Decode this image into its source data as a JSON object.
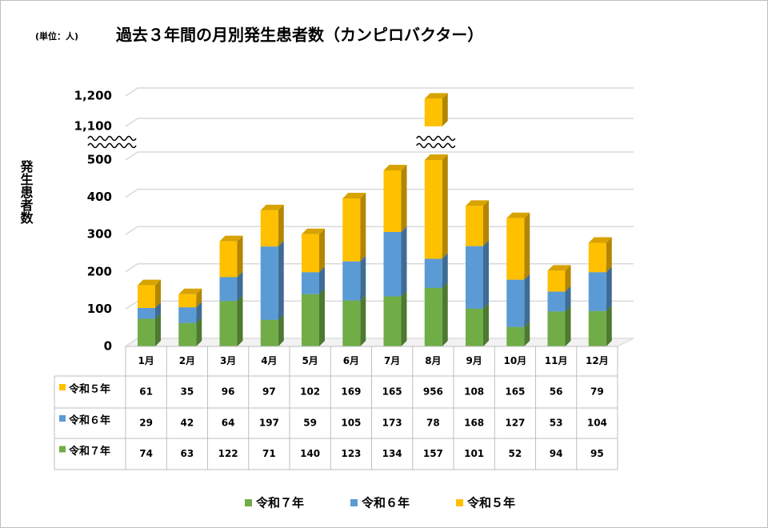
{
  "chart_data": {
    "type": "stacked-bar",
    "title": "過去３年間の月別発生患者数（カンピロバクター）",
    "unit_note": "(単位：人)",
    "y_label": "発生患者数",
    "categories": [
      "1月",
      "2月",
      "3月",
      "4月",
      "5月",
      "6月",
      "7月",
      "8月",
      "9月",
      "10月",
      "11月",
      "12月"
    ],
    "series": [
      {
        "name": "令和７年",
        "color": "#70ad47",
        "values": [
          74,
          63,
          122,
          71,
          140,
          123,
          134,
          157,
          101,
          52,
          94,
          95
        ]
      },
      {
        "name": "令和６年",
        "color": "#5b9bd5",
        "values": [
          29,
          42,
          64,
          197,
          59,
          105,
          173,
          78,
          168,
          127,
          53,
          104
        ]
      },
      {
        "name": "令和５年",
        "color": "#ffc000",
        "values": [
          61,
          35,
          96,
          97,
          102,
          169,
          165,
          956,
          108,
          165,
          56,
          79
        ]
      }
    ],
    "ylim": [
      0,
      1200
    ],
    "y_break": [
      500,
      1100
    ],
    "yticks": [
      0,
      100,
      200,
      300,
      400,
      500,
      {
        "value": 1100,
        "label": "1,100"
      },
      {
        "value": 1200,
        "label": "1,200"
      }
    ],
    "grid": true,
    "legend": "bottom"
  }
}
